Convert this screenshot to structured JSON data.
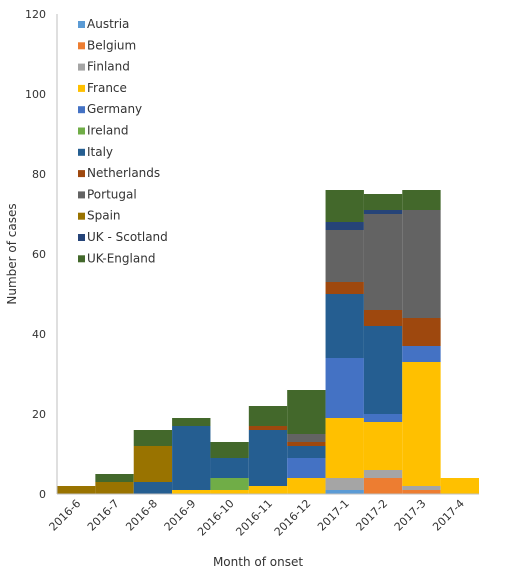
{
  "chart_data": {
    "type": "bar",
    "stacked": true,
    "xlabel": "Month of onset",
    "ylabel": "Number of cases",
    "ylim": [
      0,
      120
    ],
    "yticks": [
      0,
      20,
      40,
      60,
      80,
      100,
      120
    ],
    "grid": false,
    "legend_position": "top-left",
    "categories": [
      "2016-6",
      "2016-7",
      "2016-8",
      "2016-9",
      "2016-10",
      "2016-11",
      "2016-12",
      "2017-1",
      "2017-2",
      "2017-3",
      "2017-4"
    ],
    "series": [
      {
        "name": "Austria",
        "color": "#5b9bd5",
        "values": [
          0,
          0,
          0,
          0,
          0,
          0,
          0,
          1,
          0,
          0,
          0
        ]
      },
      {
        "name": "Belgium",
        "color": "#ed7d31",
        "values": [
          0,
          0,
          0,
          0,
          0,
          0,
          0,
          0,
          4,
          1,
          0
        ]
      },
      {
        "name": "Finland",
        "color": "#a5a5a5",
        "values": [
          0,
          0,
          0,
          0,
          0,
          0,
          0,
          3,
          2,
          1,
          0
        ]
      },
      {
        "name": "France",
        "color": "#ffc000",
        "values": [
          0,
          0,
          0,
          1,
          1,
          2,
          4,
          15,
          12,
          31,
          4
        ]
      },
      {
        "name": "Germany",
        "color": "#4472c4",
        "values": [
          0,
          0,
          0,
          0,
          0,
          0,
          5,
          15,
          2,
          4,
          0
        ]
      },
      {
        "name": "Ireland",
        "color": "#70ad47",
        "values": [
          0,
          0,
          0,
          0,
          3,
          0,
          0,
          0,
          0,
          0,
          0
        ]
      },
      {
        "name": "Italy",
        "color": "#255e91",
        "values": [
          0,
          0,
          3,
          16,
          5,
          14,
          3,
          16,
          22,
          0,
          0
        ]
      },
      {
        "name": "Netherlands",
        "color": "#9e480e",
        "values": [
          0,
          0,
          0,
          0,
          0,
          1,
          1,
          3,
          4,
          7,
          0
        ]
      },
      {
        "name": "Portugal",
        "color": "#636363",
        "values": [
          0,
          0,
          0,
          0,
          0,
          0,
          2,
          13,
          24,
          27,
          0
        ]
      },
      {
        "name": "Spain",
        "color": "#997300",
        "values": [
          2,
          3,
          9,
          0,
          0,
          0,
          0,
          0,
          0,
          0,
          0
        ]
      },
      {
        "name": "UK - Scotland",
        "color": "#264478",
        "values": [
          0,
          0,
          0,
          0,
          0,
          0,
          0,
          2,
          1,
          0,
          0
        ]
      },
      {
        "name": "UK-England",
        "color": "#43682b",
        "values": [
          0,
          2,
          4,
          2,
          4,
          5,
          11,
          8,
          4,
          5,
          0
        ]
      }
    ]
  }
}
